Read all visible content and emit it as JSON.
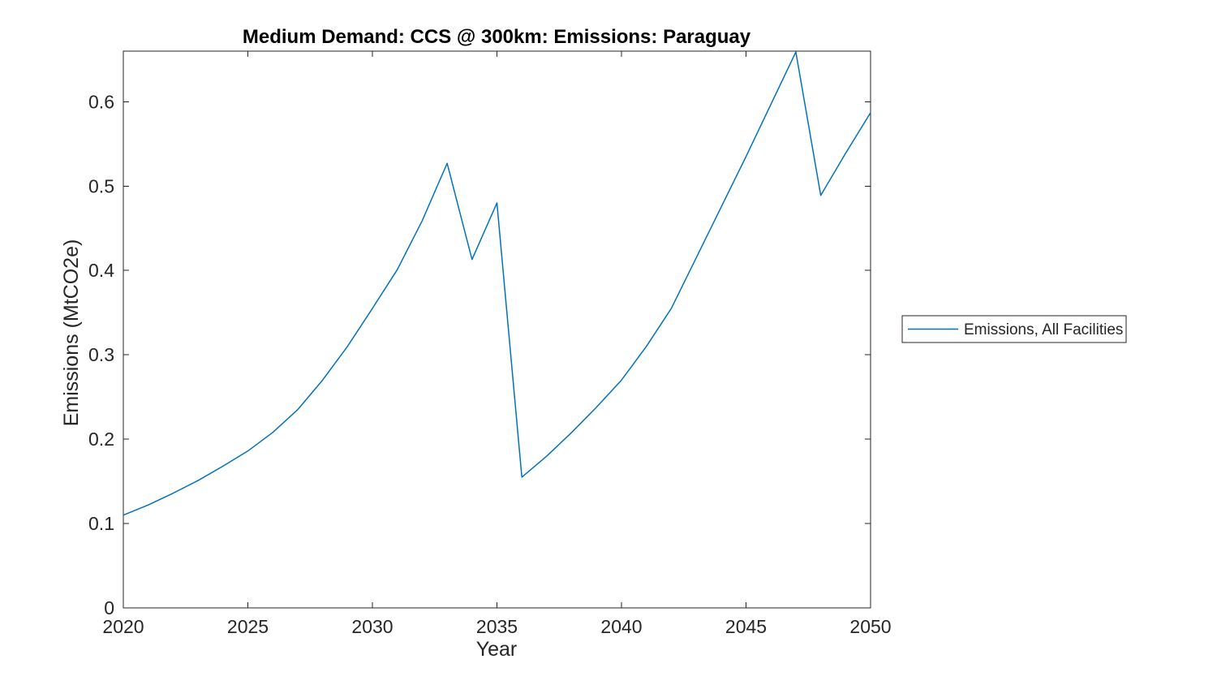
{
  "figure": {
    "background": "#ffffff"
  },
  "chart_data": {
    "type": "line",
    "title": "Medium Demand: CCS @ 300km: Emissions: Paraguay",
    "xlabel": "Year",
    "ylabel": "Emissions (MtCO2e)",
    "xlim": [
      2020,
      2050
    ],
    "ylim": [
      0,
      0.66
    ],
    "xticks": [
      2020,
      2025,
      2030,
      2035,
      2040,
      2045,
      2050
    ],
    "yticks": [
      0,
      0.1,
      0.2,
      0.3,
      0.4,
      0.5,
      0.6
    ],
    "grid": false,
    "legend_position": "outside-right",
    "legend": [
      "Emissions, All Facilities"
    ],
    "line_color": "#0072BD",
    "axis_color": "#262626",
    "x": [
      2020,
      2021,
      2022,
      2023,
      2024,
      2025,
      2026,
      2027,
      2028,
      2029,
      2030,
      2031,
      2032,
      2033,
      2034,
      2035,
      2036,
      2037,
      2038,
      2039,
      2040,
      2041,
      2042,
      2043,
      2044,
      2045,
      2046,
      2047,
      2048,
      2049,
      2050
    ],
    "series": [
      {
        "name": "Emissions, All Facilities",
        "values": [
          0.11,
          0.122,
          0.136,
          0.151,
          0.168,
          0.186,
          0.208,
          0.235,
          0.27,
          0.31,
          0.355,
          0.401,
          0.459,
          0.527,
          0.413,
          0.48,
          0.155,
          0.18,
          0.208,
          0.238,
          0.27,
          0.31,
          0.355,
          0.415,
          0.475,
          0.535,
          0.597,
          0.659,
          0.489,
          0.539,
          0.587
        ]
      }
    ]
  }
}
